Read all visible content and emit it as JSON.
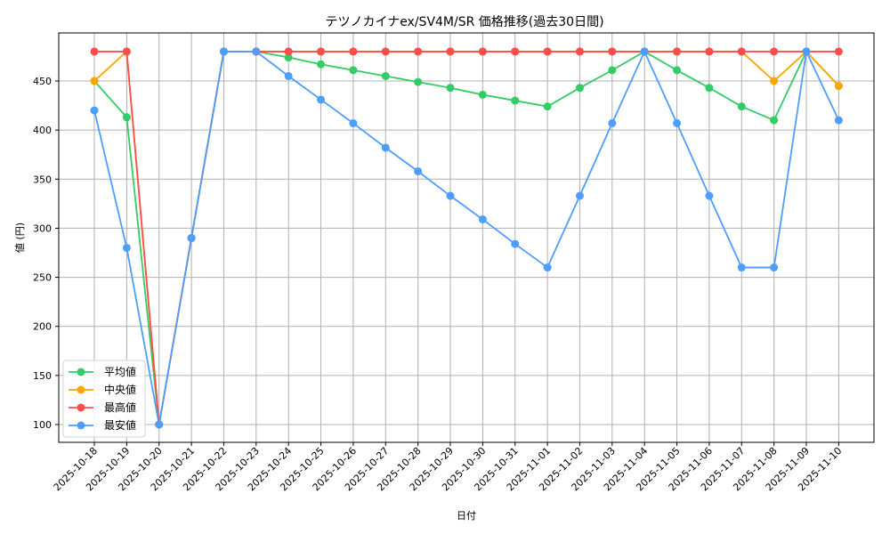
{
  "chart_data": {
    "type": "line",
    "title": "テツノカイナex/SV4M/SR 価格推移(過去30日間)",
    "xlabel": "日付",
    "ylabel": "値 (円)",
    "ylim": [
      82,
      492
    ],
    "yticks": [
      100,
      150,
      200,
      250,
      300,
      350,
      400,
      450
    ],
    "grid": true,
    "legend_position": "lower left",
    "categories": [
      "2025-10-18",
      "2025-10-19",
      "2025-10-20",
      "2025-10-21",
      "2025-10-22",
      "2025-10-23",
      "2025-10-24",
      "2025-10-25",
      "2025-10-26",
      "2025-10-27",
      "2025-10-28",
      "2025-10-29",
      "2025-10-30",
      "2025-10-31",
      "2025-11-01",
      "2025-11-02",
      "2025-11-03",
      "2025-11-04",
      "2025-11-05",
      "2025-11-06",
      "2025-11-07",
      "2025-11-08",
      "2025-11-09",
      "2025-11-10"
    ],
    "series": [
      {
        "name": "平均値",
        "color": "#33cc66",
        "values": [
          450,
          413,
          100,
          290,
          480,
          480,
          474,
          467,
          461,
          455,
          449,
          443,
          436,
          430,
          424,
          443,
          461,
          480,
          461,
          443,
          424,
          410,
          480,
          445
        ]
      },
      {
        "name": "中央値",
        "color": "#ffa500",
        "values": [
          450,
          480,
          100,
          290,
          480,
          480,
          480,
          480,
          480,
          480,
          480,
          480,
          480,
          480,
          480,
          480,
          480,
          480,
          480,
          480,
          480,
          450,
          480,
          445
        ]
      },
      {
        "name": "最高値",
        "color": "#ff4d4d",
        "values": [
          480,
          480,
          100,
          290,
          480,
          480,
          480,
          480,
          480,
          480,
          480,
          480,
          480,
          480,
          480,
          480,
          480,
          480,
          480,
          480,
          480,
          480,
          480,
          480
        ]
      },
      {
        "name": "最安値",
        "color": "#4d9eff",
        "values": [
          420,
          280,
          100,
          290,
          480,
          480,
          455,
          431,
          407,
          382,
          358,
          333,
          309,
          284,
          260,
          333,
          407,
          480,
          407,
          333,
          260,
          260,
          480,
          410
        ]
      }
    ]
  }
}
